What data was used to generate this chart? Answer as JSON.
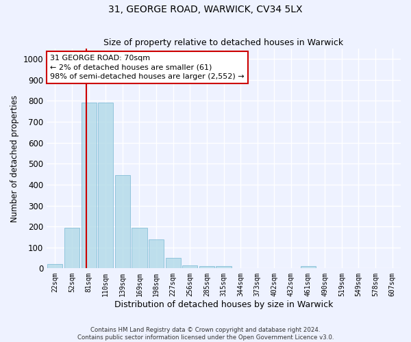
{
  "title": "31, GEORGE ROAD, WARWICK, CV34 5LX",
  "subtitle": "Size of property relative to detached houses in Warwick",
  "xlabel": "Distribution of detached houses by size in Warwick",
  "ylabel": "Number of detached properties",
  "categories": [
    "22sqm",
    "52sqm",
    "81sqm",
    "110sqm",
    "139sqm",
    "169sqm",
    "198sqm",
    "227sqm",
    "256sqm",
    "285sqm",
    "315sqm",
    "344sqm",
    "373sqm",
    "402sqm",
    "432sqm",
    "461sqm",
    "490sqm",
    "519sqm",
    "549sqm",
    "578sqm",
    "607sqm"
  ],
  "values": [
    20,
    195,
    790,
    790,
    445,
    195,
    140,
    50,
    15,
    12,
    12,
    0,
    0,
    0,
    0,
    10,
    0,
    0,
    0,
    0,
    0
  ],
  "bar_color": "#add8e6",
  "bar_edge_color": "#7ab8d4",
  "bar_alpha": 0.75,
  "vline_color": "#cc0000",
  "annotation_text": "31 GEORGE ROAD: 70sqm\n← 2% of detached houses are smaller (61)\n98% of semi-detached houses are larger (2,552) →",
  "annotation_box_color": "#ffffff",
  "annotation_box_edge": "#cc0000",
  "ylim": [
    0,
    1050
  ],
  "yticks": [
    0,
    100,
    200,
    300,
    400,
    500,
    600,
    700,
    800,
    900,
    1000
  ],
  "background_color": "#eef2ff",
  "grid_color": "#ffffff",
  "footer_line1": "Contains HM Land Registry data © Crown copyright and database right 2024.",
  "footer_line2": "Contains public sector information licensed under the Open Government Licence v3.0."
}
